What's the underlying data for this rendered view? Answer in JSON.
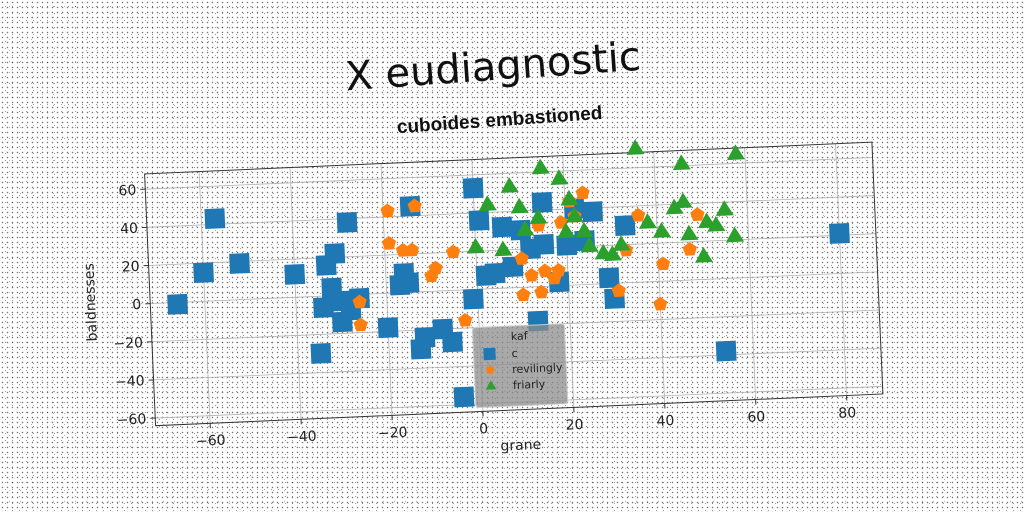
{
  "chart_data": {
    "type": "scatter",
    "title": "X eudiagnostic",
    "subtitle": "cuboides embastioned",
    "xlabel": "grane",
    "ylabel": "baldnesses",
    "xlim": [
      -72,
      88
    ],
    "ylim": [
      -64,
      68
    ],
    "xticks": [
      -60,
      -40,
      -20,
      0,
      20,
      40,
      60,
      80
    ],
    "yticks": [
      -60,
      -40,
      -20,
      0,
      20,
      40,
      60
    ],
    "grid": true,
    "legend_position": "lower-center",
    "legend_title": "kaf",
    "series": [
      {
        "name": "c",
        "marker": "square",
        "color": "#1f77b4",
        "points": [
          [
            -66,
            -1
          ],
          [
            -57,
            43
          ],
          [
            -60,
            15
          ],
          [
            -52,
            19
          ],
          [
            -40,
            12
          ],
          [
            -33,
            16
          ],
          [
            -31,
            22
          ],
          [
            -28,
            38
          ],
          [
            -32,
            4
          ],
          [
            -34,
            -6
          ],
          [
            -30,
            -3
          ],
          [
            -28,
            -8
          ],
          [
            -26,
            -2
          ],
          [
            -30,
            -14
          ],
          [
            -20,
            -18
          ],
          [
            -17,
            4
          ],
          [
            -15,
            5
          ],
          [
            -16,
            10
          ],
          [
            -14,
            45
          ],
          [
            -12,
            -24
          ],
          [
            -13,
            -30
          ],
          [
            -8,
            -20
          ],
          [
            -6,
            -27
          ],
          [
            -4,
            -56
          ],
          [
            -35,
            -30
          ],
          [
            0,
            53
          ],
          [
            1,
            36
          ],
          [
            -1,
            -5
          ],
          [
            2,
            7
          ],
          [
            4,
            8
          ],
          [
            6,
            32
          ],
          [
            8,
            11
          ],
          [
            10,
            30
          ],
          [
            12,
            20
          ],
          [
            13,
            -18
          ],
          [
            15,
            22
          ],
          [
            15,
            44
          ],
          [
            18,
            2
          ],
          [
            20,
            21
          ],
          [
            22,
            40
          ],
          [
            24,
            23
          ],
          [
            26,
            38
          ],
          [
            29,
            3
          ],
          [
            30,
            -8
          ],
          [
            33,
            30
          ],
          [
            54,
            -38
          ],
          [
            80,
            21
          ]
        ]
      },
      {
        "name": "revilingly",
        "marker": "pentagon",
        "color": "#ff7f0e",
        "points": [
          [
            -19,
            43
          ],
          [
            -13,
            45
          ],
          [
            -19,
            26
          ],
          [
            -16,
            22
          ],
          [
            -14,
            22
          ],
          [
            -9,
            12
          ],
          [
            -10,
            8
          ],
          [
            -5,
            20
          ],
          [
            -26,
            -4
          ],
          [
            -26,
            -16
          ],
          [
            -3,
            -16
          ],
          [
            10,
            15
          ],
          [
            10,
            -4
          ],
          [
            12,
            6
          ],
          [
            14,
            -3
          ],
          [
            15,
            8
          ],
          [
            17,
            4
          ],
          [
            18,
            8
          ],
          [
            19,
            33
          ],
          [
            21,
            44
          ],
          [
            22,
            36
          ],
          [
            24,
            48
          ],
          [
            14,
            32
          ],
          [
            31,
            -4
          ],
          [
            33,
            17
          ],
          [
            36,
            35
          ],
          [
            40,
            -12
          ],
          [
            41,
            9
          ],
          [
            47,
            16
          ],
          [
            49,
            34
          ]
        ]
      },
      {
        "name": "friarly",
        "marker": "triangle",
        "color": "#2ca02c",
        "points": [
          [
            3,
            44
          ],
          [
            8,
            53
          ],
          [
            15,
            62
          ],
          [
            19,
            56
          ],
          [
            21,
            45
          ],
          [
            20,
            28
          ],
          [
            22,
            36
          ],
          [
            24,
            28
          ],
          [
            25,
            20
          ],
          [
            28,
            16
          ],
          [
            32,
            20
          ],
          [
            30,
            15
          ],
          [
            0,
            22
          ],
          [
            6,
            20
          ],
          [
            10,
            42
          ],
          [
            11,
            30
          ],
          [
            14,
            36
          ],
          [
            36,
            70
          ],
          [
            38,
            31
          ],
          [
            41,
            26
          ],
          [
            44,
            38
          ],
          [
            46,
            41
          ],
          [
            46,
            61
          ],
          [
            47,
            24
          ],
          [
            50,
            12
          ],
          [
            51,
            30
          ],
          [
            53,
            28
          ],
          [
            55,
            36
          ],
          [
            57,
            22
          ],
          [
            58,
            65
          ]
        ]
      }
    ]
  }
}
